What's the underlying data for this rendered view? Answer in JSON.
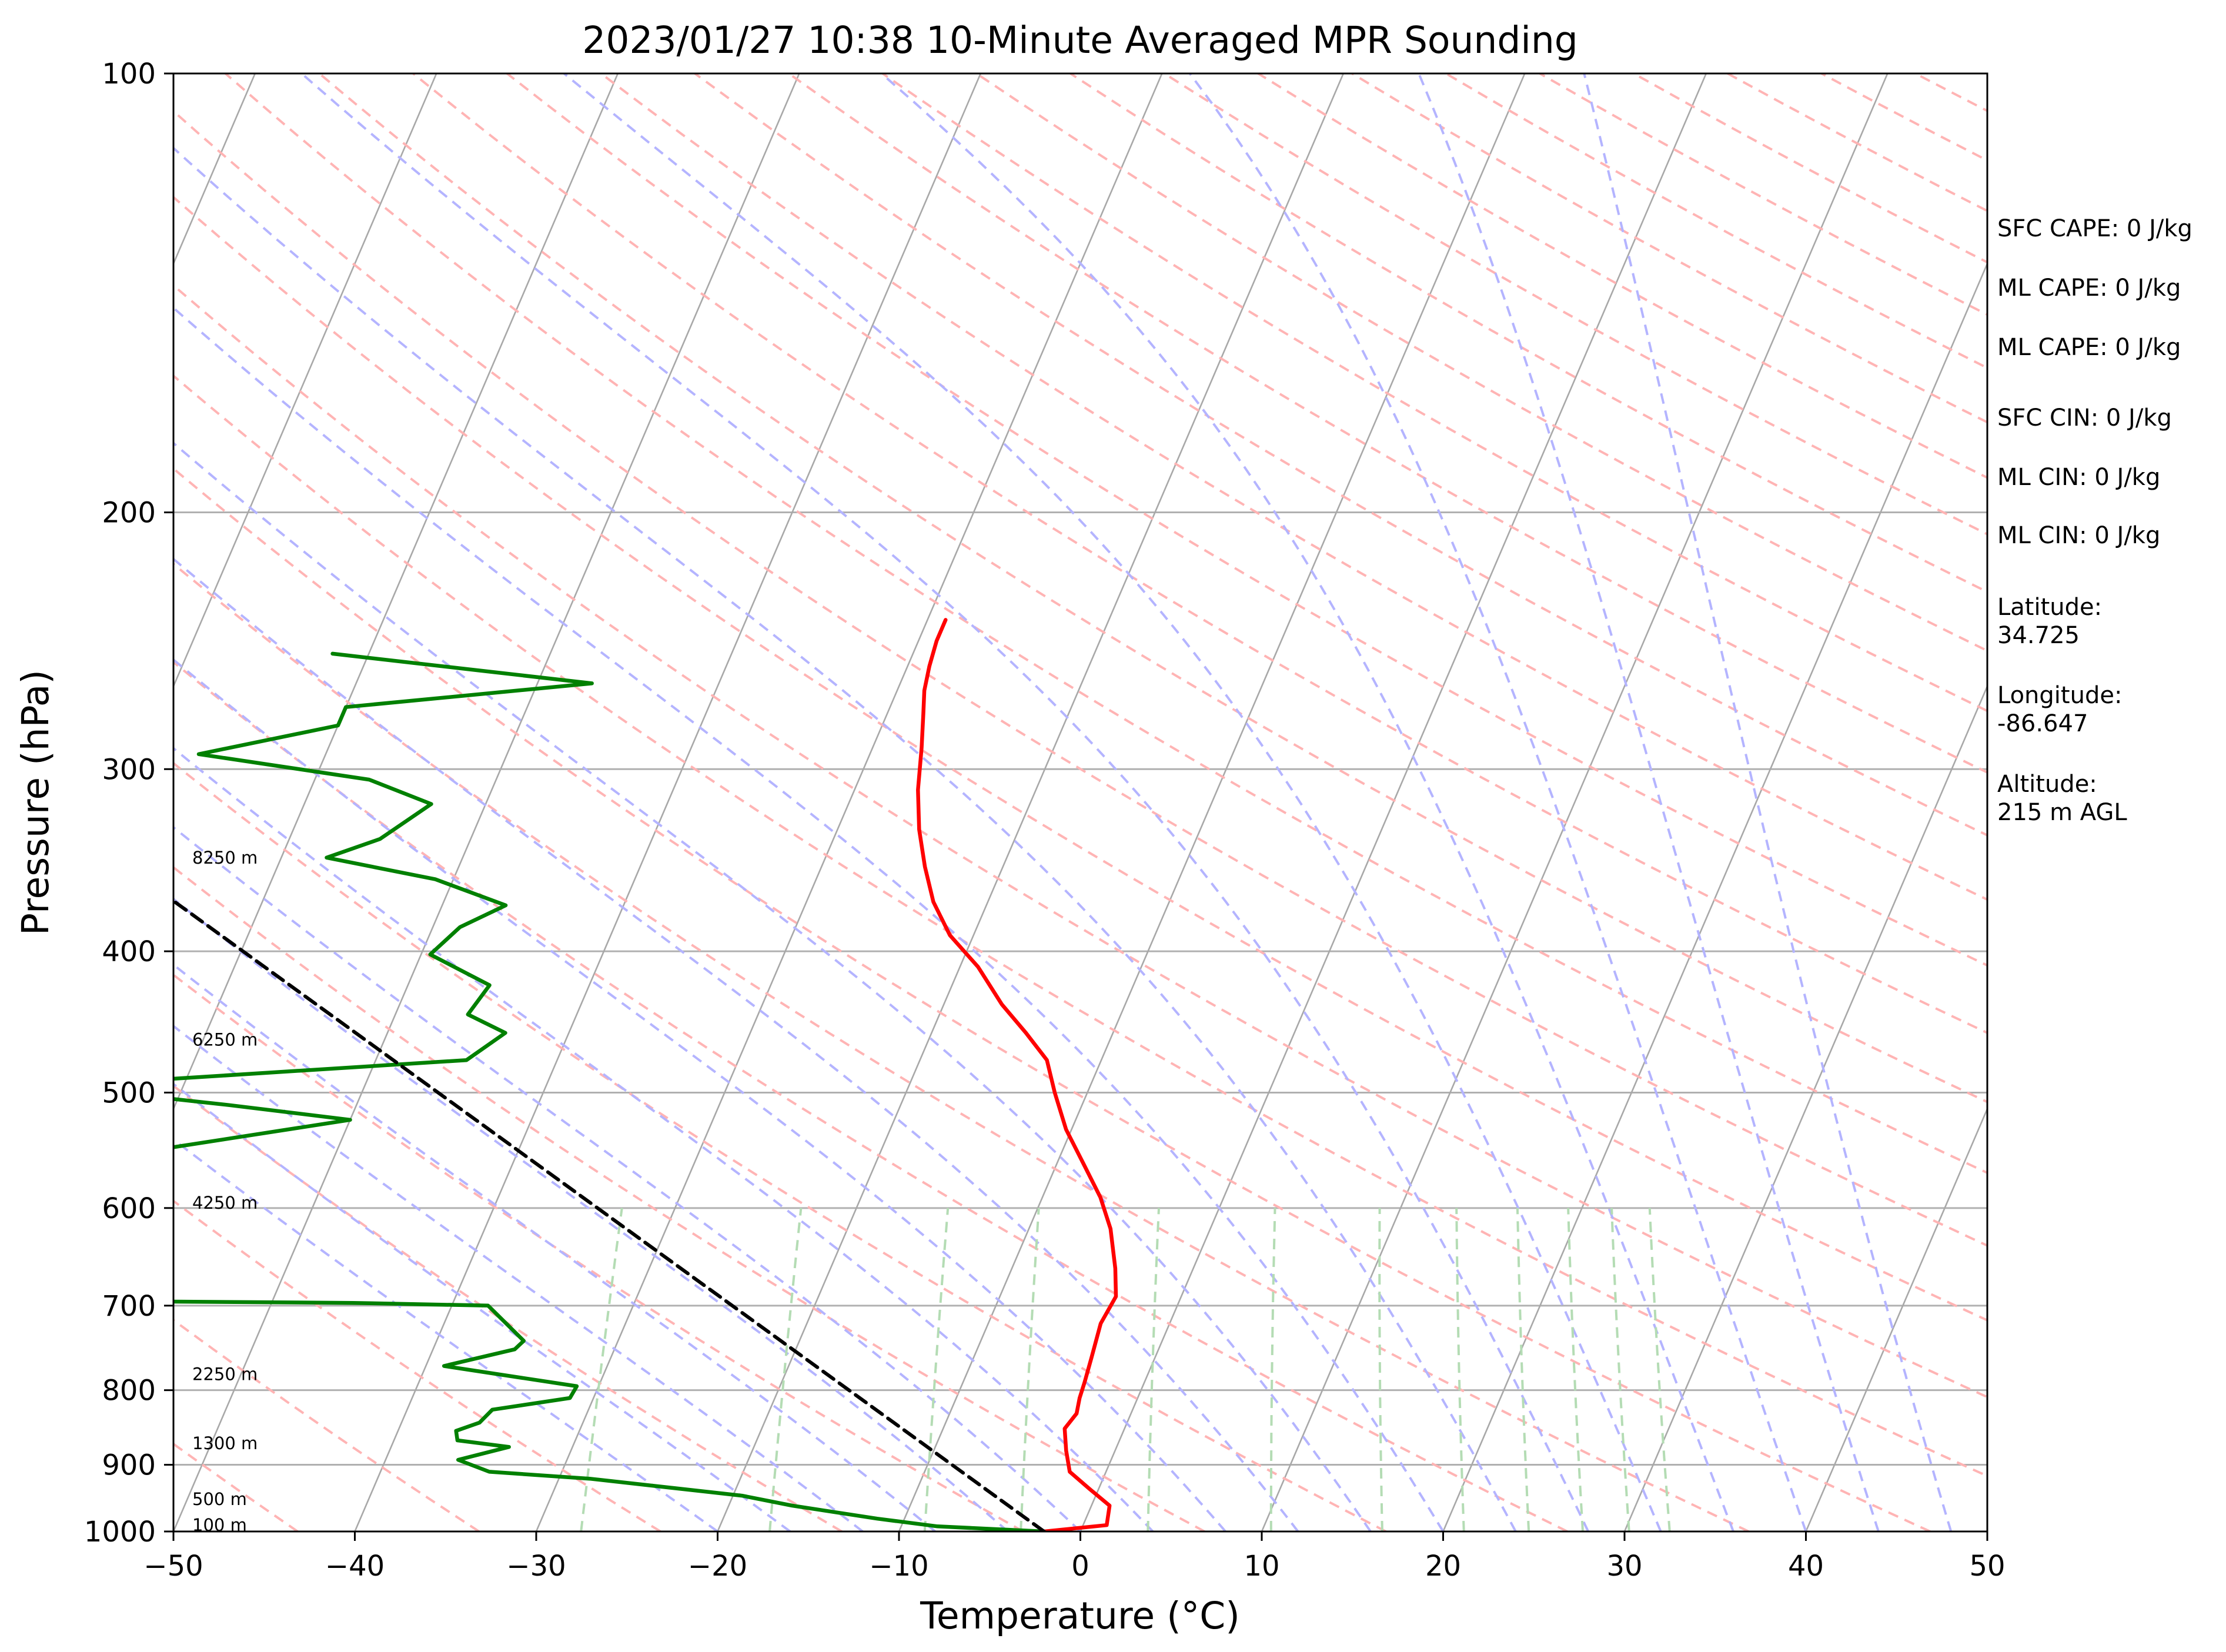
{
  "chart_data": {
    "type": "line",
    "title": "2023/01/27 10:38 10-Minute Averaged MPR Sounding",
    "xlabel": "Temperature (°C)",
    "ylabel": "Pressure (hPa)",
    "xlim": [
      -50,
      50
    ],
    "ylim": [
      1000,
      100
    ],
    "y_scale": "log",
    "skew": true,
    "grid": true,
    "x_ticks": [
      -50,
      -40,
      -30,
      -20,
      -10,
      0,
      10,
      20,
      30,
      40,
      50
    ],
    "x_tick_labels": [
      "−50",
      "−40",
      "−30",
      "−20",
      "−10",
      "0",
      "10",
      "20",
      "30",
      "40",
      "50"
    ],
    "y_ticks": [
      1000,
      900,
      800,
      700,
      600,
      500,
      400,
      300,
      200,
      100
    ],
    "y_tick_labels": [
      "1000",
      "900",
      "800",
      "700",
      "600",
      "500",
      "400",
      "300",
      "200",
      "100"
    ],
    "series": [
      {
        "color": "#ff0000",
        "points": [
          [
            -2.0,
            1000
          ],
          [
            1.3,
            990
          ],
          [
            1.0,
            960
          ],
          [
            -0.5,
            935
          ],
          [
            -2.0,
            910
          ],
          [
            -2.7,
            880
          ],
          [
            -3.3,
            850
          ],
          [
            -3.0,
            830
          ],
          [
            -3.2,
            810
          ],
          [
            -3.3,
            790
          ],
          [
            -3.5,
            760
          ],
          [
            -3.8,
            720
          ],
          [
            -3.6,
            690
          ],
          [
            -4.3,
            660
          ],
          [
            -5.5,
            620
          ],
          [
            -6.8,
            590
          ],
          [
            -8.5,
            560
          ],
          [
            -10.3,
            530
          ],
          [
            -11.8,
            500
          ],
          [
            -13.0,
            475
          ],
          [
            -14.8,
            455
          ],
          [
            -16.8,
            435
          ],
          [
            -19.0,
            410
          ],
          [
            -21.3,
            390
          ],
          [
            -23.0,
            370
          ],
          [
            -24.3,
            350
          ],
          [
            -25.5,
            330
          ],
          [
            -26.5,
            310
          ],
          [
            -27.3,
            290
          ],
          [
            -28.0,
            275
          ],
          [
            -28.5,
            265
          ],
          [
            -28.8,
            255
          ],
          [
            -29.0,
            245
          ],
          [
            -29.0,
            237
          ]
        ]
      },
      {
        "color": "#008000",
        "points": [
          [
            -2.0,
            1000
          ],
          [
            -8.0,
            992
          ],
          [
            -11.5,
            980
          ],
          [
            -16.5,
            960
          ],
          [
            -19.5,
            945
          ],
          [
            -28.3,
            920
          ],
          [
            -34.0,
            910
          ],
          [
            -36.0,
            893
          ],
          [
            -33.5,
            875
          ],
          [
            -36.5,
            866
          ],
          [
            -36.8,
            853
          ],
          [
            -35.7,
            842
          ],
          [
            -35.3,
            825
          ],
          [
            -31.3,
            810
          ],
          [
            -31.2,
            795
          ],
          [
            -39.0,
            770
          ],
          [
            -35.5,
            750
          ],
          [
            -35.2,
            740
          ],
          [
            -38.0,
            700
          ],
          [
            -45.5,
            697
          ],
          [
            -95.0,
            690
          ],
          [
            -97.0,
            580
          ],
          [
            -75.0,
            575
          ],
          [
            -70.0,
            563
          ],
          [
            -61.0,
            550
          ],
          [
            -50.0,
            522
          ],
          [
            -57.0,
            510
          ],
          [
            -67.0,
            495
          ],
          [
            -45.0,
            475
          ],
          [
            -43.5,
            455
          ],
          [
            -46.0,
            442
          ],
          [
            -45.5,
            422
          ],
          [
            -49.5,
            402
          ],
          [
            -48.5,
            385
          ],
          [
            -46.5,
            372
          ],
          [
            -51.0,
            357
          ],
          [
            -57.5,
            345
          ],
          [
            -55.0,
            335
          ],
          [
            -53.0,
            317
          ],
          [
            -57.0,
            305
          ],
          [
            -67.0,
            293
          ],
          [
            -60.0,
            280
          ],
          [
            -60.0,
            272
          ],
          [
            -47.0,
            262
          ],
          [
            -62.0,
            250
          ]
        ]
      },
      {
        "color": "#000000",
        "dashed": true,
        "points": [
          [
            -2.0,
            1000
          ],
          [
            -76.0,
            310
          ]
        ]
      }
    ],
    "height_labels": [
      {
        "text": "100 m",
        "pressure": 990
      },
      {
        "text": "500 m",
        "pressure": 950
      },
      {
        "text": "1300 m",
        "pressure": 870
      },
      {
        "text": "2250 m",
        "pressure": 780
      },
      {
        "text": "4250 m",
        "pressure": 595
      },
      {
        "text": "6250 m",
        "pressure": 460
      },
      {
        "text": "8250 m",
        "pressure": 345
      }
    ],
    "annotations": [
      [
        "SFC CAPE: 0 J/kg"
      ],
      [
        "ML CAPE: 0 J/kg"
      ],
      [
        "ML CAPE: 0 J/kg"
      ],
      [
        "SFC CIN: 0 J/kg"
      ],
      [
        "ML CIN: 0 J/kg"
      ],
      [
        "ML CIN: 0 J/kg"
      ],
      [
        "Latitude:",
        "34.725"
      ],
      [
        "Longitude:",
        "-86.647"
      ],
      [
        "Altitude:",
        "215 m AGL"
      ]
    ],
    "reference_lines": {
      "isotherm_color": "#a8a8a8",
      "dry_adiabat_color": "#ffb4b4",
      "moist_adiabat_color": "#b4b4ff",
      "mixing_ratio_color": "#b4dcb4"
    }
  }
}
